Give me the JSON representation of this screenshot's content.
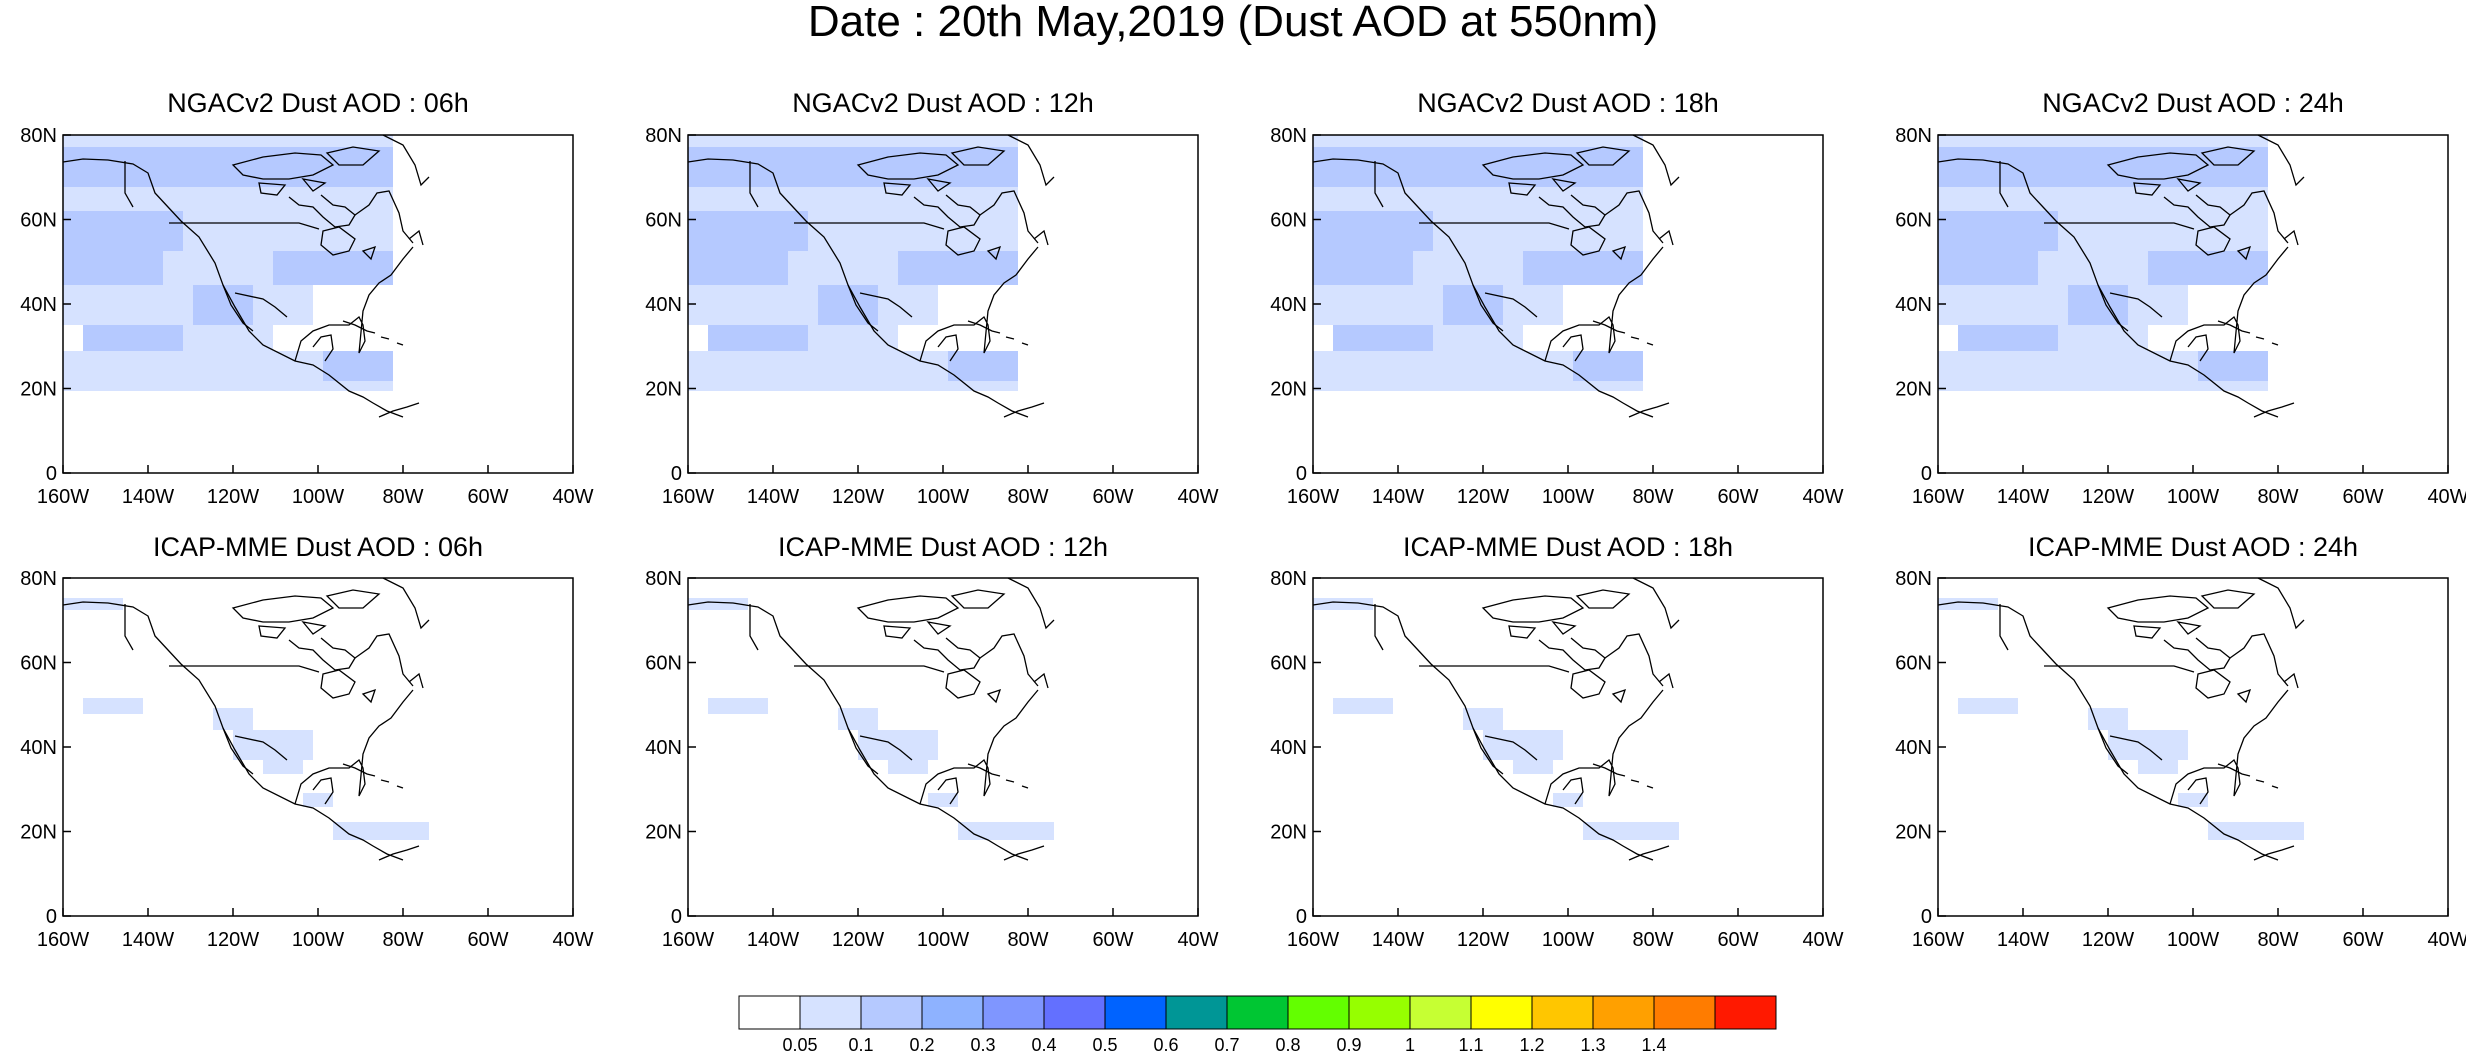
{
  "title": "Date : 20th May,2019 (Dust AOD at 550nm)",
  "rows": [
    {
      "model": "NGACv2",
      "panels": [
        {
          "title": "NGACv2 Dust AOD : 06h",
          "hour": "06h"
        },
        {
          "title": "NGACv2 Dust AOD : 12h",
          "hour": "12h"
        },
        {
          "title": "NGACv2 Dust AOD : 18h",
          "hour": "18h"
        },
        {
          "title": "NGACv2 Dust AOD : 24h",
          "hour": "24h"
        }
      ]
    },
    {
      "model": "ICAP-MME",
      "panels": [
        {
          "title": "ICAP-MME Dust AOD : 06h",
          "hour": "06h"
        },
        {
          "title": "ICAP-MME Dust AOD : 12h",
          "hour": "12h"
        },
        {
          "title": "ICAP-MME Dust AOD : 18h",
          "hour": "18h"
        },
        {
          "title": "ICAP-MME Dust AOD : 24h",
          "hour": "24h"
        }
      ]
    }
  ],
  "map": {
    "lon_range": [
      -160,
      -40
    ],
    "lat_range": [
      0,
      80
    ],
    "lon_ticks": [
      "160W",
      "140W",
      "120W",
      "100W",
      "80W",
      "60W",
      "40W"
    ],
    "lat_ticks": [
      "0",
      "20N",
      "40N",
      "60N",
      "80N"
    ]
  },
  "colorbar": {
    "colors": [
      "#ffffff",
      "#d6e2ff",
      "#b5c9ff",
      "#8eb2ff",
      "#7f96ff",
      "#6370ff",
      "#0063ff",
      "#009696",
      "#00c633",
      "#63ff00",
      "#96ff00",
      "#c6ff33",
      "#ffff00",
      "#ffc600",
      "#ffa000",
      "#ff7c00",
      "#ff1900"
    ],
    "labels": [
      "0.05",
      "0.1",
      "0.2",
      "0.3",
      "0.4",
      "0.5",
      "0.6",
      "0.7",
      "0.8",
      "0.9",
      "1",
      "1.1",
      "1.2",
      "1.3",
      "1.4"
    ]
  },
  "coastline_color": "#000000"
}
